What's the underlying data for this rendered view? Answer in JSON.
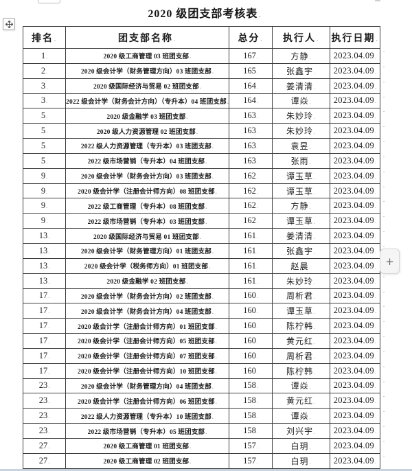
{
  "page": {
    "title": "2020 级团支部考核表"
  },
  "icons": {
    "move_handle": "table-move-cross",
    "plus": "+"
  },
  "colors": {
    "table_border": "#3c3c3c",
    "text": "#1c1c1c",
    "plus_button_bg": "#f5f5f5",
    "bottom_edge": "#c9d2e0"
  },
  "table": {
    "headers": [
      "排名",
      "团支部名称",
      "总分",
      "执行人",
      "执行日期"
    ],
    "rows": [
      [
        "1",
        "2020 级工商管理 03 班团支部",
        "167",
        "方静",
        "2023.04.09"
      ],
      [
        "2",
        "2020 级会计学（财务管理方向）03 班团支部",
        "165",
        "张鑫宇",
        "2023.04.09"
      ],
      [
        "3",
        "2020 级国际经济与贸易 02 班团支部",
        "164",
        "姜清清",
        "2023.04.09"
      ],
      [
        "3",
        "2022 级会计学（财务会计方向）（专升本）04 班团支部",
        "164",
        "谭焱",
        "2023.04.09"
      ],
      [
        "5",
        "2020 级金融学 03 班团支部",
        "163",
        "朱妙玲",
        "2023.04.09"
      ],
      [
        "5",
        "2020 级人力资源管理 02 班团支部",
        "163",
        "朱妙玲",
        "2023.04.09"
      ],
      [
        "5",
        "2022 级人力资源管理（专升本）03 班团支部",
        "163",
        "袁昱",
        "2023.04.09"
      ],
      [
        "5",
        "2022 级市场营销（专升本）04 班团支部",
        "163",
        "张雨",
        "2023.04.09"
      ],
      [
        "9",
        "2020 级会计学（财务会计方向）03 班团支部",
        "162",
        "谭玉草",
        "2023.04.09"
      ],
      [
        "9",
        "2020 级会计学（注册会计师方向）08 班团支部",
        "162",
        "谭玉草",
        "2023.04.09"
      ],
      [
        "9",
        "2022 级工商管理（专升本）08 班团支部",
        "162",
        "方静",
        "2023.04.09"
      ],
      [
        "9",
        "2022 级市场营销（专升本）03 班团支部",
        "162",
        "谭玉草",
        "2023.04.09"
      ],
      [
        "13",
        "2020 级国际经济与贸易 01 班团支部",
        "161",
        "姜清清",
        "2023.04.09"
      ],
      [
        "13",
        "2020 级会计学（财务管理方向）01 班团支部",
        "161",
        "张鑫宇",
        "2023.04.09"
      ],
      [
        "13",
        "2020 级会计学（税务师方向）01 班团支部",
        "161",
        "赵晨",
        "2023.04.09"
      ],
      [
        "13",
        "2020 级金融学 02 班团支部",
        "161",
        "朱妙玲",
        "2023.04.09"
      ],
      [
        "17",
        "2020 级会计学（财务会计方向）02 班团支部",
        "160",
        "周析君",
        "2023.04.09"
      ],
      [
        "17",
        "2020 级会计学（财务会计方向）04 班团支部",
        "160",
        "谭玉草",
        "2023.04.09"
      ],
      [
        "17",
        "2020 级会计学（注册会计师方向）01 班团支部",
        "160",
        "陈柠韩",
        "2023.04.09"
      ],
      [
        "17",
        "2020 级会计学（注册会计师方向）05 班团支部",
        "160",
        "黄元红",
        "2023.04.09"
      ],
      [
        "17",
        "2020 级会计学（注册会计师方向）07 班团支部",
        "160",
        "周析君",
        "2023.04.09"
      ],
      [
        "17",
        "2020 级会计学（注册会计师方向）10 班团支部",
        "160",
        "陈柠韩",
        "2023.04.09"
      ],
      [
        "23",
        "2020 级会计学（财务管理方向）04 班团支部",
        "158",
        "谭焱",
        "2023.04.09"
      ],
      [
        "23",
        "2020 级会计学（注册会计师方向）06 班团支部",
        "158",
        "黄元红",
        "2023.04.09"
      ],
      [
        "23",
        "2022 级人力资源管理（专升本）10 班团支部",
        "158",
        "谭焱",
        "2023.04.09"
      ],
      [
        "23",
        "2022 级市场营销（专升本）05 班团支部",
        "158",
        "刘兴宇",
        "2023.04.09"
      ],
      [
        "27",
        "2020 级工商管理 01 班团支部",
        "157",
        "白玥",
        "2023.04.09"
      ],
      [
        "27",
        "2020 级工商管理 02 班团支部",
        "157",
        "白玥",
        "2023.04.09"
      ]
    ]
  }
}
